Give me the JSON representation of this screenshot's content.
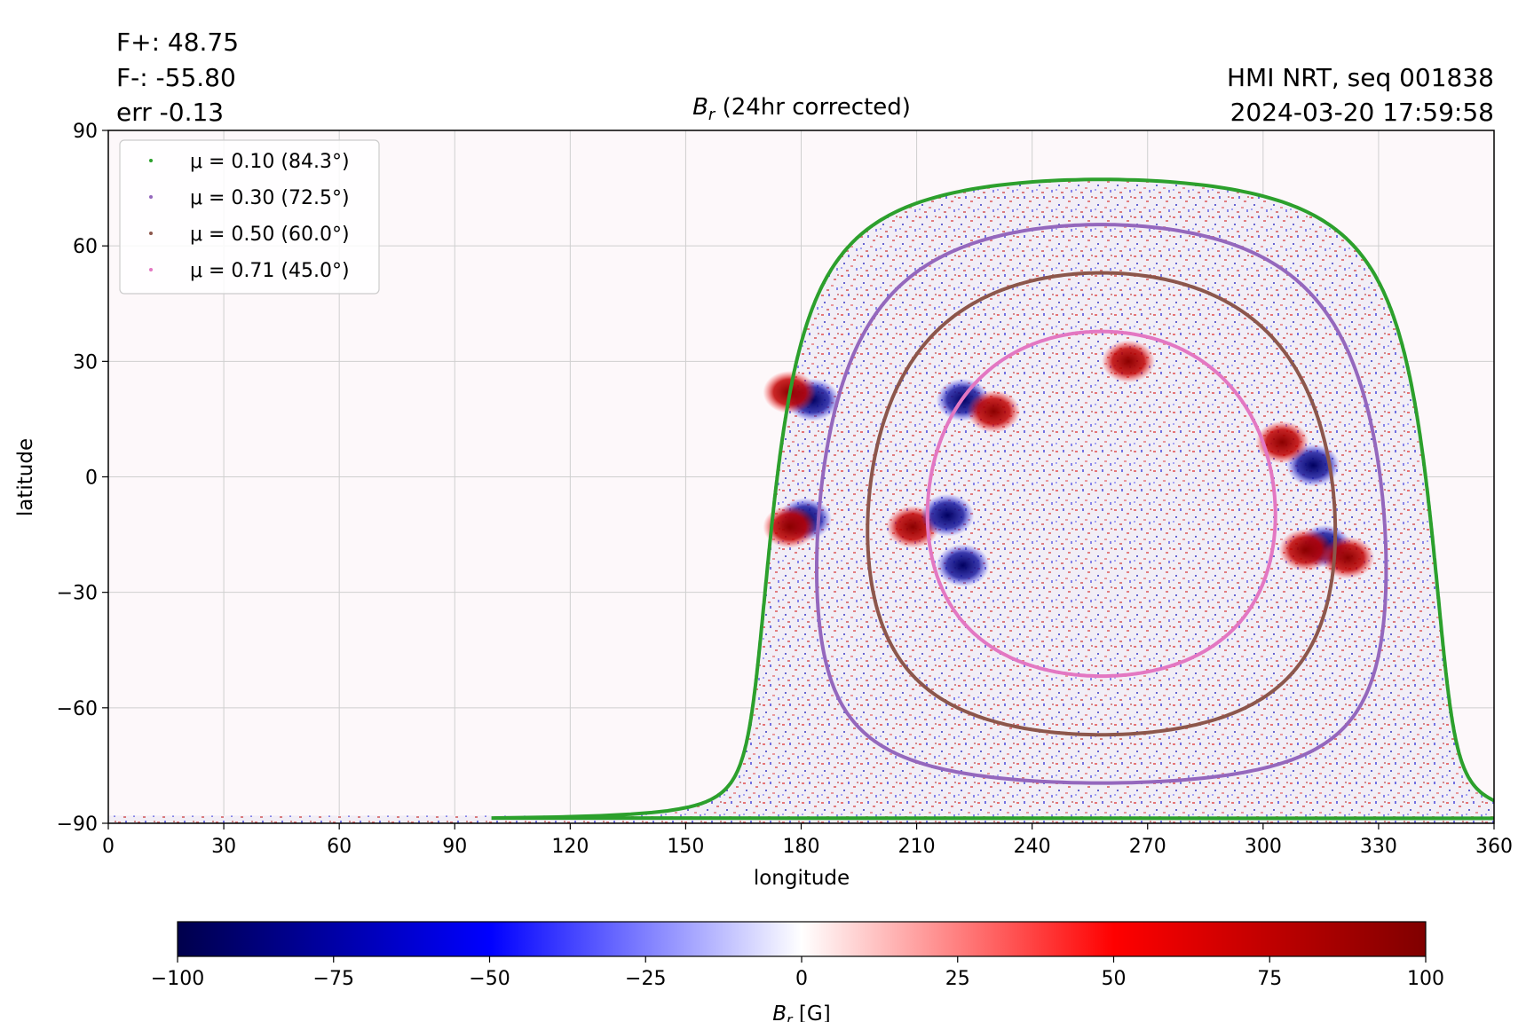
{
  "header_left": {
    "flux_plus": "F+: 48.75",
    "flux_minus": "F-: -55.80",
    "err": "err -0.13"
  },
  "header_right": {
    "source": "HMI NRT, seq 001838",
    "timestamp": "2024-03-20 17:59:58"
  },
  "colors": {
    "negative": "#00004c",
    "mid_negative": "#0000ff",
    "zero": "#ffffff",
    "mid_positive": "#ff0000",
    "positive": "#800000",
    "grid": "#cccccc"
  },
  "chart_data": {
    "type": "heatmap",
    "title_symbol": "B",
    "title_subscript": "r",
    "title_rest": " (24hr corrected)",
    "xlabel": "longitude",
    "ylabel": "latitude",
    "xlim": [
      0,
      360
    ],
    "ylim": [
      -90,
      90
    ],
    "xticks": [
      0,
      30,
      60,
      90,
      120,
      150,
      180,
      210,
      240,
      270,
      300,
      330,
      360
    ],
    "yticks": [
      90,
      60,
      30,
      0,
      -30,
      -60,
      -90
    ],
    "grid": true,
    "legend_position": "top-left",
    "disk_center": {
      "longitude": 258,
      "latitude": -7
    },
    "series": [
      {
        "name": "μ = 0.10 (84.3°)",
        "mu": 0.1,
        "angle_deg": 84.3,
        "color": "#2ca02c"
      },
      {
        "name": "μ = 0.30 (72.5°)",
        "mu": 0.3,
        "angle_deg": 72.5,
        "color": "#9467bd"
      },
      {
        "name": "μ = 0.50 (60.0°)",
        "mu": 0.5,
        "angle_deg": 60.0,
        "color": "#8c564b"
      },
      {
        "name": "μ = 0.71 (45.0°)",
        "mu": 0.71,
        "angle_deg": 45.0,
        "color": "#e377c2"
      }
    ],
    "active_regions": [
      {
        "longitude": 222,
        "latitude": 20,
        "polarity": "negative"
      },
      {
        "longitude": 230,
        "latitude": 17,
        "polarity": "positive"
      },
      {
        "longitude": 209,
        "latitude": -13,
        "polarity": "positive"
      },
      {
        "longitude": 218,
        "latitude": -10,
        "polarity": "negative"
      },
      {
        "longitude": 183,
        "latitude": 20,
        "polarity": "negative"
      },
      {
        "longitude": 177,
        "latitude": 22,
        "polarity": "positive"
      },
      {
        "longitude": 181,
        "latitude": -11,
        "polarity": "negative"
      },
      {
        "longitude": 177,
        "latitude": -13,
        "polarity": "positive"
      },
      {
        "longitude": 316,
        "latitude": -18,
        "polarity": "negative"
      },
      {
        "longitude": 322,
        "latitude": -21,
        "polarity": "positive"
      },
      {
        "longitude": 311,
        "latitude": -19,
        "polarity": "positive"
      },
      {
        "longitude": 313,
        "latitude": 3,
        "polarity": "negative"
      },
      {
        "longitude": 305,
        "latitude": 9,
        "polarity": "positive"
      },
      {
        "longitude": 265,
        "latitude": 30,
        "polarity": "positive"
      },
      {
        "longitude": 222,
        "latitude": -23,
        "polarity": "negative"
      }
    ],
    "colorbar": {
      "label_symbol": "B",
      "label_subscript": "r",
      "label_unit": " [G]",
      "range": [
        -100,
        100
      ],
      "ticks": [
        "−100",
        "−75",
        "−50",
        "−25",
        "0",
        "25",
        "50",
        "75",
        "100"
      ]
    }
  }
}
